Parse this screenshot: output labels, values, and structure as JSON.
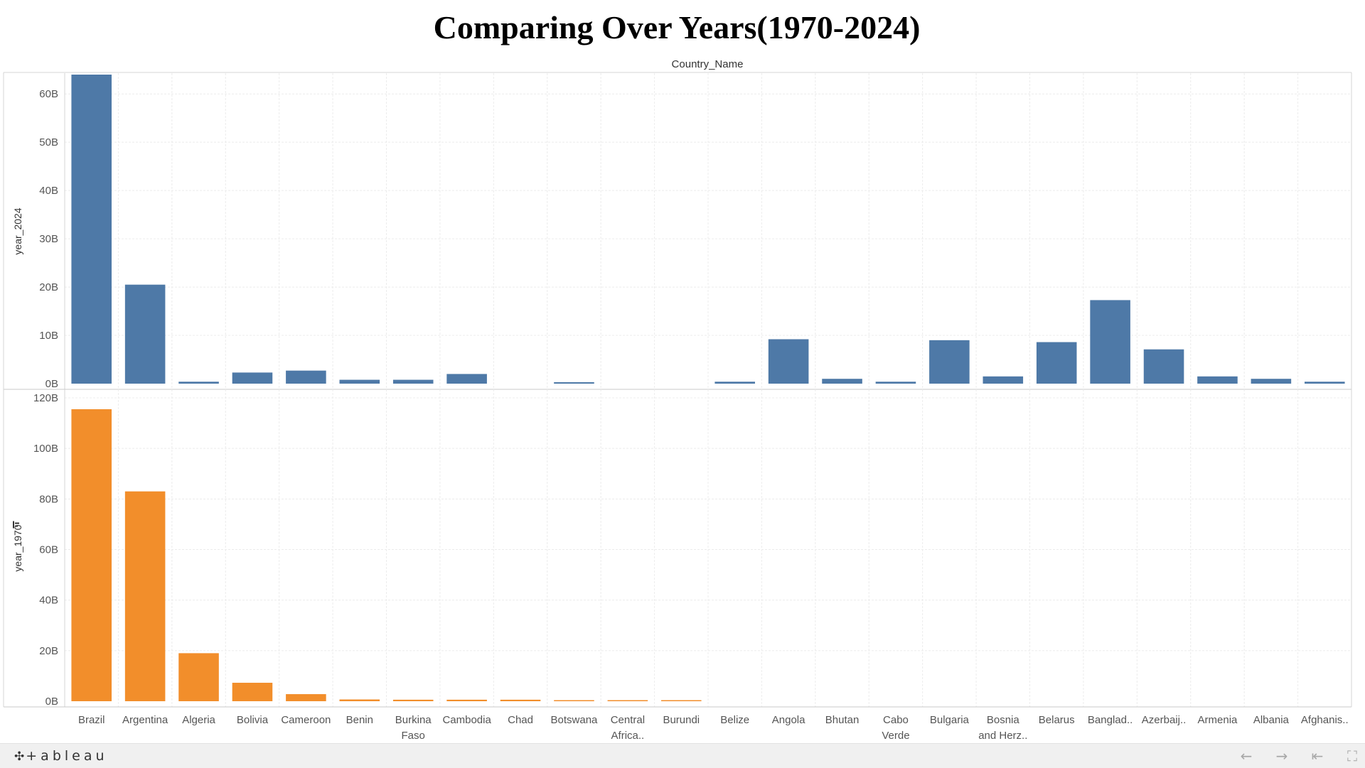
{
  "title": "Comparing Over Years(1970-2024)",
  "chart_data": {
    "type": "bar",
    "column_header": "Country_Name",
    "categories": [
      [
        "Brazil"
      ],
      [
        "Argentina"
      ],
      [
        "Algeria"
      ],
      [
        "Bolivia"
      ],
      [
        "Cameroon"
      ],
      [
        "Benin"
      ],
      [
        "Burkina",
        "Faso"
      ],
      [
        "Cambodia"
      ],
      [
        "Chad"
      ],
      [
        "Botswana"
      ],
      [
        "Central",
        "Africa.."
      ],
      [
        "Burundi"
      ],
      [
        "Belize"
      ],
      [
        "Angola"
      ],
      [
        "Bhutan"
      ],
      [
        "Cabo",
        "Verde"
      ],
      [
        "Bulgaria"
      ],
      [
        "Bosnia",
        "and Herz.."
      ],
      [
        "Belarus"
      ],
      [
        "Banglad.."
      ],
      [
        "Azerbaij.."
      ],
      [
        "Armenia"
      ],
      [
        "Albania"
      ],
      [
        "Afghanis.."
      ]
    ],
    "series": [
      {
        "name": "year_2024",
        "color": "#4e79a7",
        "ylim": [
          0,
          67
        ],
        "ticks": [
          0,
          10,
          20,
          30,
          40,
          50,
          60
        ],
        "tick_labels": [
          "0B",
          "10B",
          "20B",
          "30B",
          "40B",
          "50B",
          "60B"
        ],
        "unit": "B",
        "values": [
          64,
          20.5,
          0.4,
          2.3,
          2.7,
          0.8,
          0.8,
          2.0,
          0,
          0.3,
          0,
          0,
          0.4,
          9.2,
          1.0,
          0.4,
          9.0,
          1.5,
          8.6,
          17.3,
          7.1,
          1.5,
          1.0,
          0.4
        ]
      },
      {
        "name": "year_1970",
        "color": "#f28e2b",
        "ylim": [
          0,
          120
        ],
        "ticks": [
          0,
          20,
          40,
          60,
          80,
          100,
          120
        ],
        "tick_labels": [
          "0B",
          "20B",
          "40B",
          "60B",
          "80B",
          "100B",
          "120B"
        ],
        "unit": "B",
        "values": [
          115.5,
          83,
          19,
          7.3,
          2.8,
          0.7,
          0.6,
          0.6,
          0.6,
          0.3,
          0.3,
          0.3,
          0,
          0,
          0,
          0,
          0,
          0,
          0,
          0,
          0,
          0,
          0,
          0
        ]
      }
    ],
    "grid": true
  },
  "footer": {
    "logo_text": "+ableau",
    "logo_mark": "✣",
    "buttons": [
      {
        "name": "undo-icon",
        "glyph": "←"
      },
      {
        "name": "redo-icon",
        "glyph": "→"
      },
      {
        "name": "revert-icon",
        "glyph": "⇤"
      },
      {
        "name": "fullscreen-icon",
        "glyph": "⛶"
      }
    ]
  }
}
